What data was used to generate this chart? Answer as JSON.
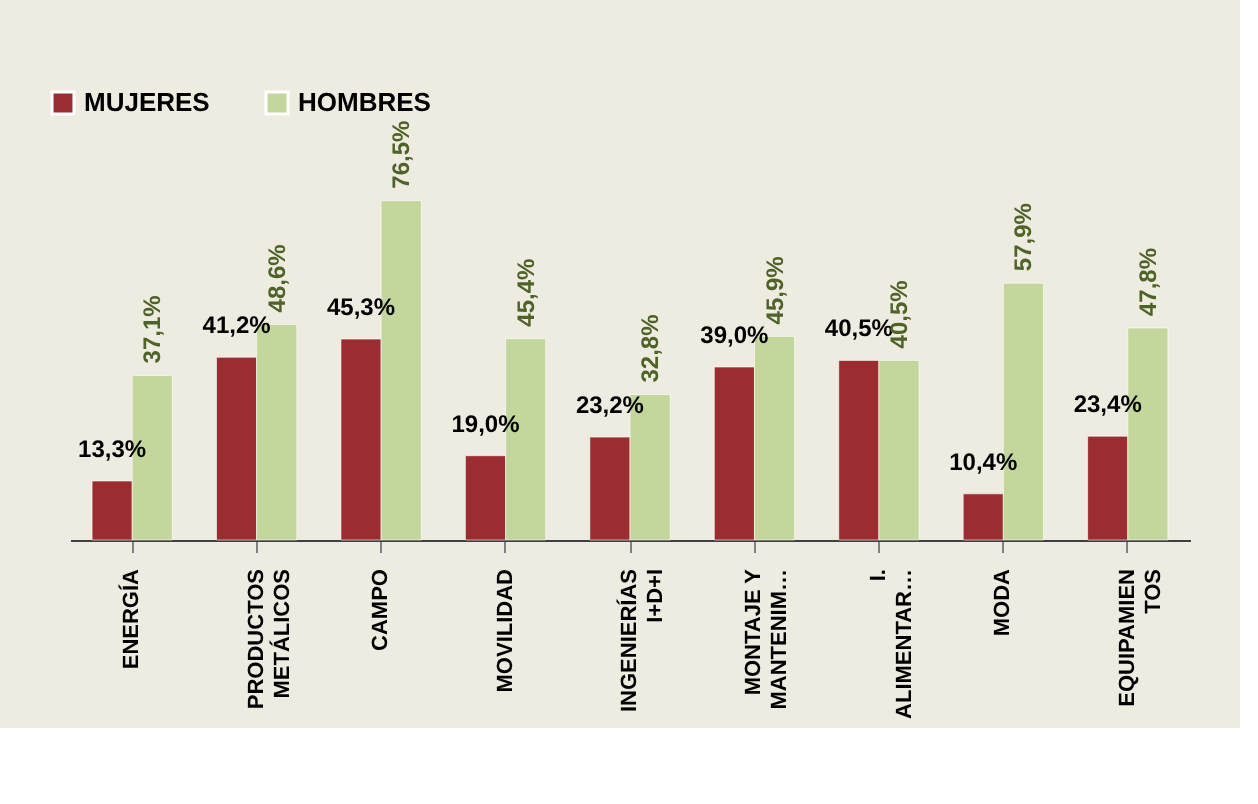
{
  "chart_data": {
    "type": "bar",
    "categories": [
      "ENERGÍA",
      "PRODUCTOS\nMETÁLICOS",
      "CAMPO",
      "MOVILIDAD",
      "INGENIERÍAS\nI+D+I",
      "MONTAJE Y\nMANTENIM…",
      "I.\nALIMENTAR…",
      "MODA",
      "EQUIPAMIEN\nTOS"
    ],
    "series": [
      {
        "name": "MUJERES",
        "color": "#9b2d30",
        "values": [
          13.3,
          41.2,
          45.3,
          19.0,
          23.2,
          39.0,
          40.5,
          10.4,
          23.4
        ],
        "value_labels": [
          "13,3%",
          "41,2%",
          "45,3%",
          "19,0%",
          "23,2%",
          "39,0%",
          "40,5%",
          "10,4%",
          "23,4%"
        ]
      },
      {
        "name": "HOMBRES",
        "color": "#c3d69b",
        "values": [
          37.1,
          48.6,
          76.5,
          45.4,
          32.8,
          45.9,
          40.5,
          57.9,
          47.8
        ],
        "value_labels": [
          "37,1%",
          "48,6%",
          "76,5%",
          "45,4%",
          "32,8%",
          "45,9%",
          "40,5%",
          "57,9%",
          "47,8%"
        ]
      }
    ],
    "legend": "top left",
    "tick_labels": "x"
  }
}
